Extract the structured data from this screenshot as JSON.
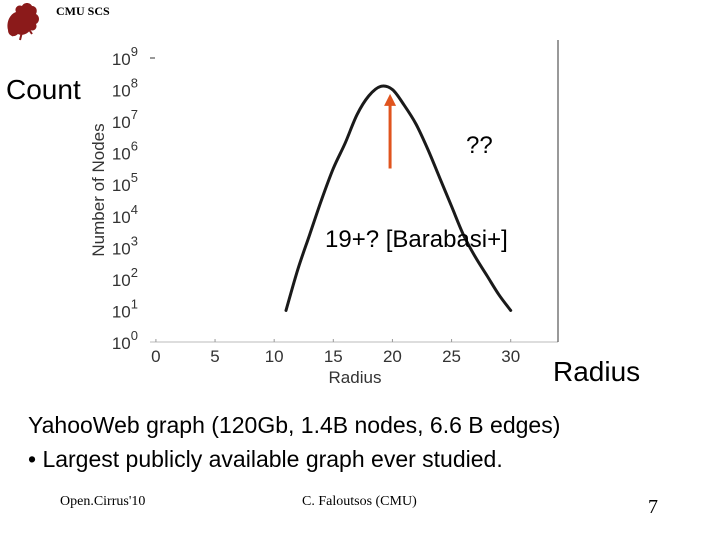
{
  "header": {
    "org_label": "CMU SCS"
  },
  "slide": {
    "count_label": "Count",
    "radius_label": "Radius",
    "question_label": "??",
    "barabasi_label": "19+? [Barabasi+]",
    "caption_line1": "YahooWeb graph  (120Gb, 1.4B nodes, 6.6 B edges)",
    "caption_line2": "• Largest publicly available graph ever studied."
  },
  "footer": {
    "left": "Open.Cirrus'10",
    "middle": "C. Faloutsos (CMU)",
    "page_number": "7"
  },
  "colors": {
    "arrow": "#e0541e",
    "curve": "#1a1a1a",
    "grid": "#aaaaaa"
  },
  "chart_data": {
    "type": "line",
    "xlabel": "Radius",
    "ylabel": "Number of Nodes",
    "x_ticks": [
      "0",
      "5",
      "10",
      "15",
      "20",
      "25",
      "30"
    ],
    "y_ticks": [
      {
        "base": "10",
        "exp": "0"
      },
      {
        "base": "10",
        "exp": "1"
      },
      {
        "base": "10",
        "exp": "2"
      },
      {
        "base": "10",
        "exp": "3"
      },
      {
        "base": "10",
        "exp": "4"
      },
      {
        "base": "10",
        "exp": "5"
      },
      {
        "base": "10",
        "exp": "6"
      },
      {
        "base": "10",
        "exp": "7"
      },
      {
        "base": "10",
        "exp": "8"
      },
      {
        "base": "10",
        "exp": "9"
      }
    ],
    "xlim": [
      -0.5,
      34
    ],
    "ylim": [
      0,
      9
    ],
    "y_scale": "log",
    "series": [
      {
        "x": [
          11,
          12,
          13,
          14,
          15,
          16,
          17,
          18,
          19,
          20,
          21,
          22,
          23,
          24,
          25,
          26,
          27,
          28,
          29,
          30
        ],
        "y": [
          1.0,
          2.3,
          3.4,
          4.5,
          5.5,
          6.3,
          7.2,
          7.8,
          8.1,
          8.0,
          7.5,
          6.9,
          6.1,
          5.2,
          4.3,
          3.4,
          2.7,
          2.1,
          1.5,
          1.0
        ]
      }
    ],
    "annotations": [
      {
        "type": "arrow",
        "x": 19.8,
        "y_from": 5.5,
        "y_to": 7.8
      }
    ]
  }
}
